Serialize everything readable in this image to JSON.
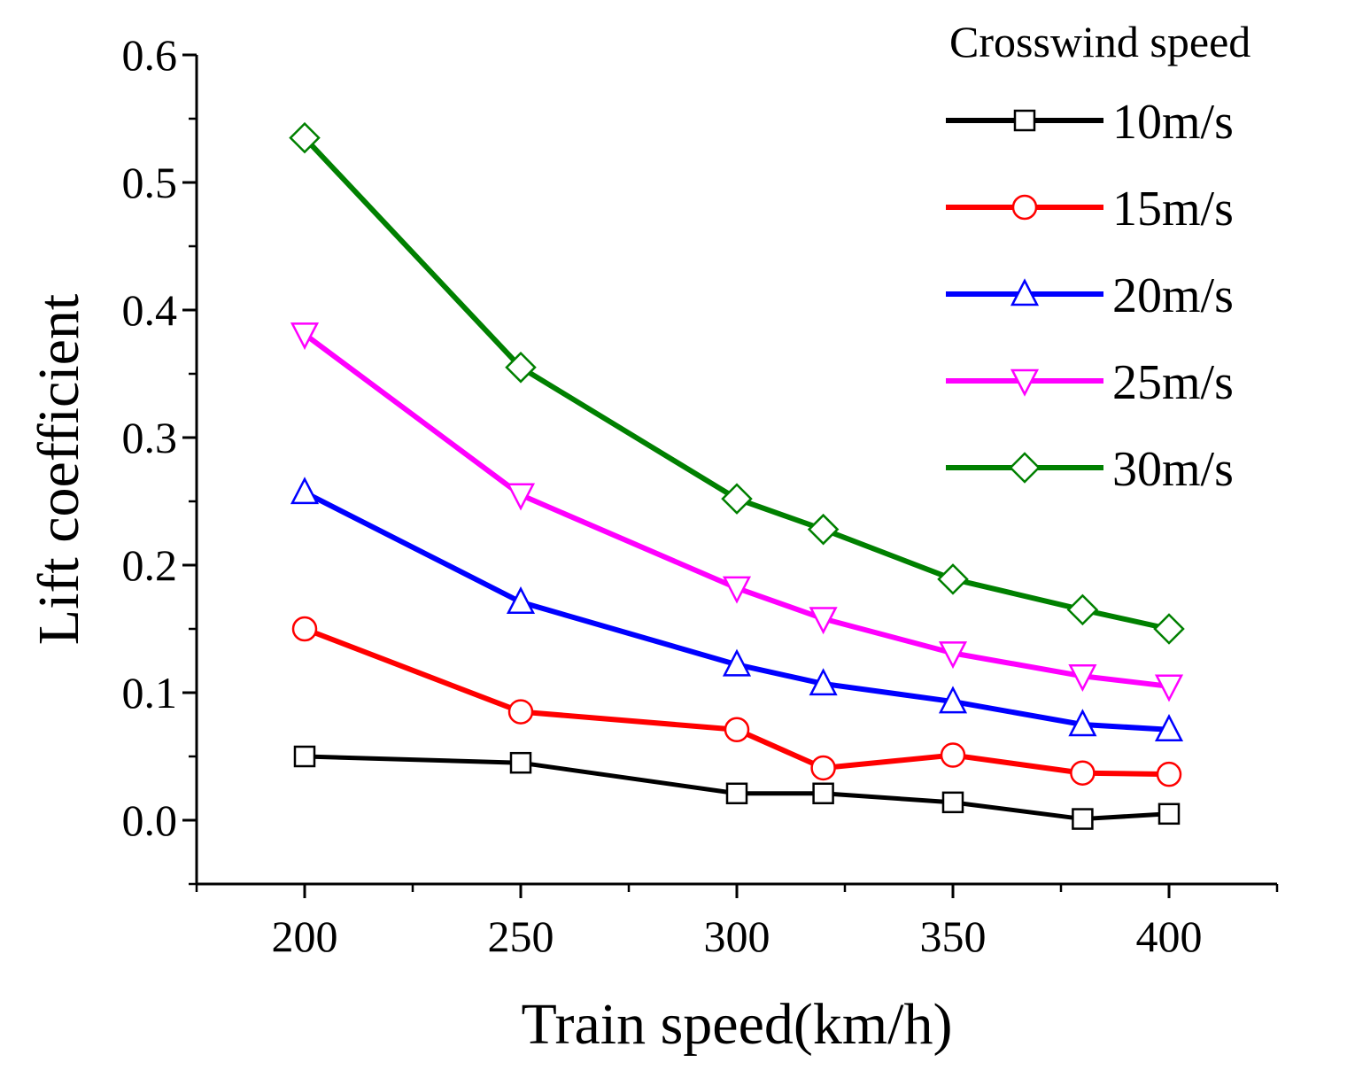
{
  "chart_data": {
    "type": "line",
    "title": "",
    "xlabel": "Train speed(km/h)",
    "ylabel": "Lift coefficient",
    "xlim": [
      175,
      425
    ],
    "ylim": [
      -0.05,
      0.6
    ],
    "x_ticks": [
      200,
      250,
      300,
      350,
      400
    ],
    "x_tick_labels": [
      "200",
      "250",
      "300",
      "350",
      "400"
    ],
    "y_ticks": [
      0.0,
      0.1,
      0.2,
      0.3,
      0.4,
      0.5,
      0.6
    ],
    "y_tick_labels": [
      "0.0",
      "0.1",
      "0.2",
      "0.3",
      "0.4",
      "0.5",
      "0.6"
    ],
    "grid": false,
    "legend_title": "Crosswind speed",
    "legend_position": "top-right",
    "x": [
      200,
      250,
      300,
      320,
      350,
      380,
      400
    ],
    "series": [
      {
        "name": "10m/s",
        "color": "#000000",
        "marker": "square",
        "values": [
          0.05,
          0.045,
          0.021,
          0.021,
          0.014,
          0.001,
          0.005
        ]
      },
      {
        "name": "15m/s",
        "color": "#ff0000",
        "marker": "circle",
        "values": [
          0.15,
          0.085,
          0.071,
          0.041,
          0.051,
          0.037,
          0.036
        ]
      },
      {
        "name": "20m/s",
        "color": "#0000ff",
        "marker": "triangle-up",
        "values": [
          0.257,
          0.171,
          0.122,
          0.107,
          0.093,
          0.075,
          0.071
        ]
      },
      {
        "name": "25m/s",
        "color": "#ff00ff",
        "marker": "triangle-down",
        "values": [
          0.381,
          0.255,
          0.182,
          0.158,
          0.131,
          0.113,
          0.105
        ]
      },
      {
        "name": "30m/s",
        "color": "#008000",
        "marker": "diamond",
        "values": [
          0.535,
          0.355,
          0.252,
          0.228,
          0.189,
          0.165,
          0.15
        ]
      }
    ]
  }
}
